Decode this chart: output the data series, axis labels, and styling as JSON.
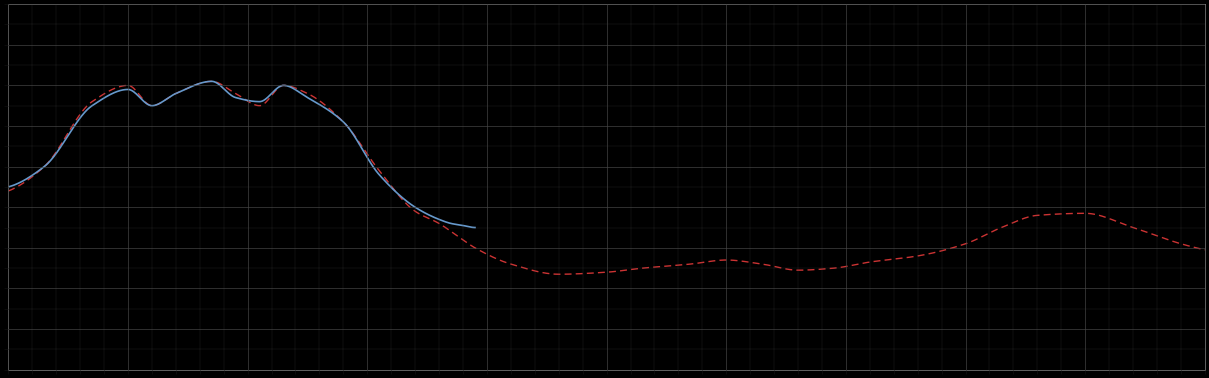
{
  "background_color": "#000000",
  "plot_bg_color": "#000000",
  "grid_color": "#4a4a4a",
  "blue_line_color": "#6699cc",
  "red_line_color": "#cc3333",
  "figsize": [
    12.09,
    3.78
  ],
  "dpi": 100,
  "spine_color": "#888888",
  "blue_linewidth": 1.2,
  "red_linewidth": 1.0
}
